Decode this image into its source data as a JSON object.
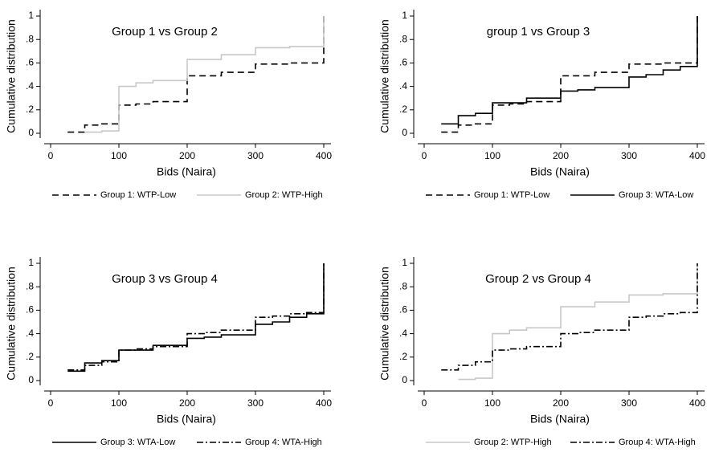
{
  "chart_data": [
    {
      "type": "line",
      "step": "post",
      "title": "Group 1 vs Group 2",
      "xlabel": "Bids (Naira)",
      "ylabel": "Cumulative distribution",
      "xlim": [
        0,
        400
      ],
      "ylim": [
        0,
        1
      ],
      "xticks": [
        0,
        100,
        200,
        300,
        400
      ],
      "yticks": [
        0,
        {
          "value": 0.2,
          "label": ".2"
        },
        {
          "value": 0.4,
          "label": ".4"
        },
        {
          "value": 0.6,
          "label": ".6"
        },
        {
          "value": 0.8,
          "label": ".8"
        },
        1
      ],
      "series": [
        {
          "name": "Group 1: WTP-Low",
          "color": "#000000",
          "dash": "dashed",
          "x": [
            25,
            50,
            75,
            100,
            125,
            150,
            200,
            250,
            300,
            350,
            400
          ],
          "values": [
            0.01,
            0.07,
            0.08,
            0.24,
            0.25,
            0.27,
            0.49,
            0.52,
            0.59,
            0.6,
            1
          ]
        },
        {
          "name": "Group 2: WTP-High",
          "color": "#c8c8c8",
          "dash": "solid",
          "x": [
            50,
            75,
            100,
            125,
            150,
            200,
            250,
            300,
            350,
            400
          ],
          "values": [
            0.01,
            0.02,
            0.4,
            0.43,
            0.45,
            0.63,
            0.67,
            0.73,
            0.74,
            1
          ]
        }
      ]
    },
    {
      "type": "line",
      "step": "post",
      "title": "group 1 vs Group 3",
      "xlabel": "Bids (Naira)",
      "ylabel": "Cumulative distribution",
      "xlim": [
        0,
        400
      ],
      "ylim": [
        0,
        1
      ],
      "xticks": [
        0,
        100,
        200,
        300,
        400
      ],
      "yticks": [
        0,
        {
          "value": 0.2,
          "label": ".2"
        },
        {
          "value": 0.4,
          "label": ".4"
        },
        {
          "value": 0.6,
          "label": ".6"
        },
        {
          "value": 0.8,
          "label": ".8"
        },
        1
      ],
      "series": [
        {
          "name": "Group 1: WTP-Low",
          "color": "#000000",
          "dash": "dashed",
          "x": [
            25,
            50,
            75,
            100,
            125,
            150,
            200,
            250,
            300,
            350,
            400
          ],
          "values": [
            0.01,
            0.07,
            0.08,
            0.24,
            0.25,
            0.27,
            0.49,
            0.52,
            0.59,
            0.6,
            1
          ]
        },
        {
          "name": "Group 3: WTA-Low",
          "color": "#000000",
          "dash": "solid",
          "x": [
            25,
            50,
            75,
            100,
            150,
            200,
            225,
            250,
            300,
            325,
            350,
            375,
            400
          ],
          "values": [
            0.08,
            0.15,
            0.17,
            0.26,
            0.3,
            0.36,
            0.37,
            0.39,
            0.48,
            0.5,
            0.54,
            0.57,
            1
          ]
        }
      ]
    },
    {
      "type": "line",
      "step": "post",
      "title": "Group 3 vs Group 4",
      "xlabel": "Bids (Naira)",
      "ylabel": "Cumulative distribution",
      "xlim": [
        0,
        400
      ],
      "ylim": [
        0,
        1
      ],
      "xticks": [
        0,
        100,
        200,
        300,
        400
      ],
      "yticks": [
        0,
        {
          "value": 0.2,
          "label": ".2"
        },
        {
          "value": 0.4,
          "label": ".4"
        },
        {
          "value": 0.6,
          "label": ".6"
        },
        {
          "value": 0.8,
          "label": ".8"
        },
        1
      ],
      "series": [
        {
          "name": "Group 3: WTA-Low",
          "color": "#000000",
          "dash": "solid",
          "x": [
            25,
            50,
            75,
            100,
            150,
            200,
            225,
            250,
            300,
            325,
            350,
            375,
            400
          ],
          "values": [
            0.08,
            0.15,
            0.17,
            0.26,
            0.3,
            0.36,
            0.37,
            0.39,
            0.48,
            0.5,
            0.54,
            0.57,
            1
          ]
        },
        {
          "name": "Group 4: WTA-High",
          "color": "#000000",
          "dash": "dashdot",
          "x": [
            25,
            50,
            75,
            100,
            125,
            150,
            200,
            225,
            250,
            300,
            325,
            350,
            375,
            400
          ],
          "values": [
            0.09,
            0.13,
            0.16,
            0.26,
            0.27,
            0.29,
            0.4,
            0.41,
            0.43,
            0.54,
            0.55,
            0.57,
            0.58,
            1
          ]
        }
      ]
    },
    {
      "type": "line",
      "step": "post",
      "title": "Group 2 vs Group 4",
      "xlabel": "Bids (Naira)",
      "ylabel": "Cumulative distribution",
      "xlim": [
        0,
        400
      ],
      "ylim": [
        0,
        1
      ],
      "xticks": [
        0,
        100,
        200,
        300,
        400
      ],
      "yticks": [
        0,
        {
          "value": 0.2,
          "label": ".2"
        },
        {
          "value": 0.4,
          "label": ".4"
        },
        {
          "value": 0.6,
          "label": ".6"
        },
        {
          "value": 0.8,
          "label": ".8"
        },
        1
      ],
      "series": [
        {
          "name": "Group 2: WTP-High",
          "color": "#c8c8c8",
          "dash": "solid",
          "x": [
            50,
            75,
            100,
            125,
            150,
            200,
            250,
            300,
            350,
            400
          ],
          "values": [
            0.01,
            0.02,
            0.4,
            0.43,
            0.45,
            0.63,
            0.67,
            0.73,
            0.74,
            1
          ]
        },
        {
          "name": "Group 4: WTA-High",
          "color": "#000000",
          "dash": "dashdot",
          "x": [
            25,
            50,
            75,
            100,
            125,
            150,
            200,
            225,
            250,
            300,
            325,
            350,
            375,
            400
          ],
          "values": [
            0.09,
            0.13,
            0.16,
            0.26,
            0.27,
            0.29,
            0.4,
            0.41,
            0.43,
            0.54,
            0.55,
            0.57,
            0.58,
            1
          ]
        }
      ]
    }
  ]
}
